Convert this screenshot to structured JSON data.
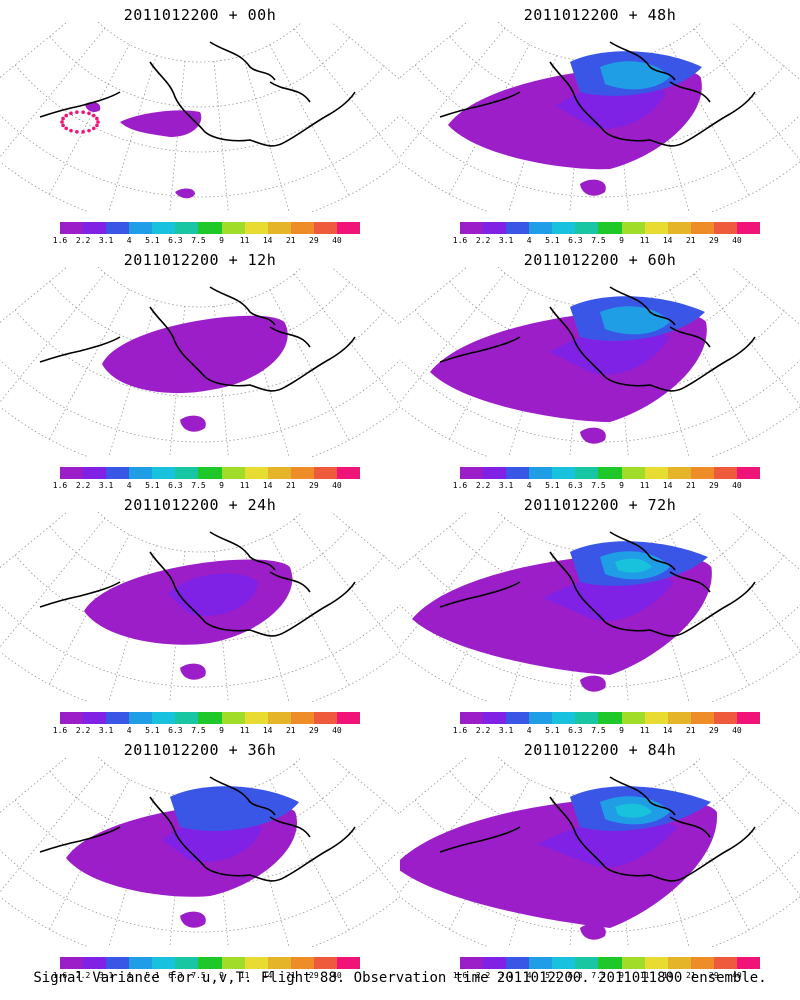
{
  "panels": [
    {
      "title": "2011012200 + 00h",
      "level": 0
    },
    {
      "title": "2011012200 + 48h",
      "level": 4
    },
    {
      "title": "2011012200 + 12h",
      "level": 1
    },
    {
      "title": "2011012200 + 60h",
      "level": 5
    },
    {
      "title": "2011012200 + 24h",
      "level": 2
    },
    {
      "title": "2011012200 + 72h",
      "level": 6
    },
    {
      "title": "2011012200 + 36h",
      "level": 3
    },
    {
      "title": "2011012200 + 84h",
      "level": 7
    }
  ],
  "colorbar": {
    "colors": [
      "#9c1ec8",
      "#7f22e6",
      "#3a56e6",
      "#1f9ee6",
      "#19c2dc",
      "#18c6a4",
      "#1ec828",
      "#a0dc28",
      "#e6dc32",
      "#e6b428",
      "#ee8c28",
      "#f05a3c",
      "#f01478"
    ],
    "labels": [
      "1.6",
      "2.2",
      "3.1",
      "4",
      "5.1",
      "6.3",
      "7.5",
      "9",
      "11",
      "14",
      "21",
      "29",
      "40"
    ]
  },
  "caption": "Signal Variance for u,v,T. Flight 88. Observation time 2011012200. 2011011800 ensemble."
}
